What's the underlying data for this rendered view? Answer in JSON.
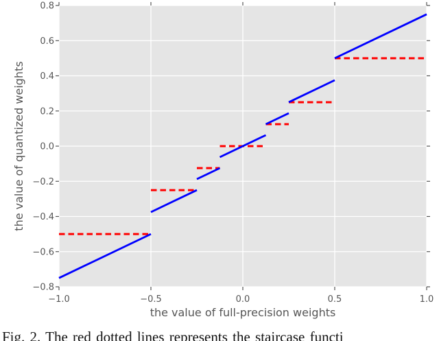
{
  "caption": {
    "text": "Fig. 2.  The red dotted lines represents the staircase functi"
  },
  "chart_data": {
    "type": "line",
    "title": "",
    "xlabel": "the value of full-precision weights",
    "ylabel": "the value of quantized weights",
    "xlim": [
      -1.0,
      1.0
    ],
    "ylim": [
      -0.8,
      0.8
    ],
    "xticks": [
      -1.0,
      -0.5,
      0.0,
      0.5,
      1.0
    ],
    "yticks": [
      -0.8,
      -0.6,
      -0.4,
      -0.2,
      0.0,
      0.2,
      0.4,
      0.6,
      0.8
    ],
    "xtick_labels": [
      "−1.0",
      "−0.5",
      "0.0",
      "0.5",
      "1.0"
    ],
    "ytick_labels": [
      "−0.8",
      "−0.6",
      "−0.4",
      "−0.2",
      "0.0",
      "0.2",
      "0.4",
      "0.6",
      "0.8"
    ],
    "grid": true,
    "legend": "none",
    "background_color": "#e5e5e5",
    "grid_color": "#ffffff",
    "tick_color": "#555555",
    "label_color": "#555555",
    "series": [
      {
        "id": "staircase-function",
        "name": "staircase quantization function (red dotted)",
        "color": "#ff0000",
        "style": "dashed",
        "segments": [
          [
            [
              -1.0,
              -0.5
            ],
            [
              -0.5,
              -0.5
            ]
          ],
          [
            [
              -0.5,
              -0.25
            ],
            [
              -0.25,
              -0.25
            ]
          ],
          [
            [
              -0.25,
              -0.125
            ],
            [
              -0.125,
              -0.125
            ]
          ],
          [
            [
              -0.125,
              0.0
            ],
            [
              0.125,
              0.0
            ]
          ],
          [
            [
              0.125,
              0.125
            ],
            [
              0.25,
              0.125
            ]
          ],
          [
            [
              0.25,
              0.25
            ],
            [
              0.5,
              0.25
            ]
          ],
          [
            [
              0.5,
              0.5
            ],
            [
              1.0,
              0.5
            ]
          ]
        ]
      },
      {
        "id": "quantization-function",
        "name": "piecewise linear function (blue solid)",
        "color": "#0000ff",
        "style": "solid",
        "segments": [
          [
            [
              -1.0,
              -0.75
            ],
            [
              -0.5,
              -0.5
            ]
          ],
          [
            [
              -0.5,
              -0.375
            ],
            [
              -0.25,
              -0.25
            ]
          ],
          [
            [
              -0.25,
              -0.1875
            ],
            [
              -0.125,
              -0.125
            ]
          ],
          [
            [
              -0.125,
              -0.0625
            ],
            [
              0.125,
              0.0625
            ]
          ],
          [
            [
              0.125,
              0.125
            ],
            [
              0.25,
              0.1875
            ]
          ],
          [
            [
              0.25,
              0.25
            ],
            [
              0.5,
              0.375
            ]
          ],
          [
            [
              0.5,
              0.5
            ],
            [
              1.0,
              0.75
            ]
          ]
        ]
      }
    ]
  }
}
